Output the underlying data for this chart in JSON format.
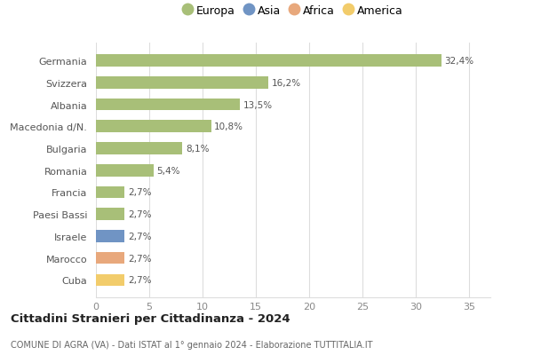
{
  "categories": [
    "Cuba",
    "Marocco",
    "Israele",
    "Paesi Bassi",
    "Francia",
    "Romania",
    "Bulgaria",
    "Macedonia d/N.",
    "Albania",
    "Svizzera",
    "Germania"
  ],
  "values": [
    2.7,
    2.7,
    2.7,
    2.7,
    2.7,
    5.4,
    8.1,
    10.8,
    13.5,
    16.2,
    32.4
  ],
  "labels": [
    "2,7%",
    "2,7%",
    "2,7%",
    "2,7%",
    "2,7%",
    "5,4%",
    "8,1%",
    "10,8%",
    "13,5%",
    "16,2%",
    "32,4%"
  ],
  "bar_colors": [
    "#f2cc6b",
    "#e8a87c",
    "#7094c4",
    "#a8bf78",
    "#a8bf78",
    "#a8bf78",
    "#a8bf78",
    "#a8bf78",
    "#a8bf78",
    "#a8bf78",
    "#a8bf78"
  ],
  "continent_colors": {
    "Europa": "#a8bf78",
    "Asia": "#7094c4",
    "Africa": "#e8a87c",
    "America": "#f2cc6b"
  },
  "legend_labels": [
    "Europa",
    "Asia",
    "Africa",
    "America"
  ],
  "title": "Cittadini Stranieri per Cittadinanza - 2024",
  "subtitle": "COMUNE DI AGRA (VA) - Dati ISTAT al 1° gennaio 2024 - Elaborazione TUTTITALIA.IT",
  "xlim": [
    0,
    37
  ],
  "xticks": [
    0,
    5,
    10,
    15,
    20,
    25,
    30,
    35
  ],
  "background_color": "#ffffff",
  "grid_color": "#dddddd"
}
